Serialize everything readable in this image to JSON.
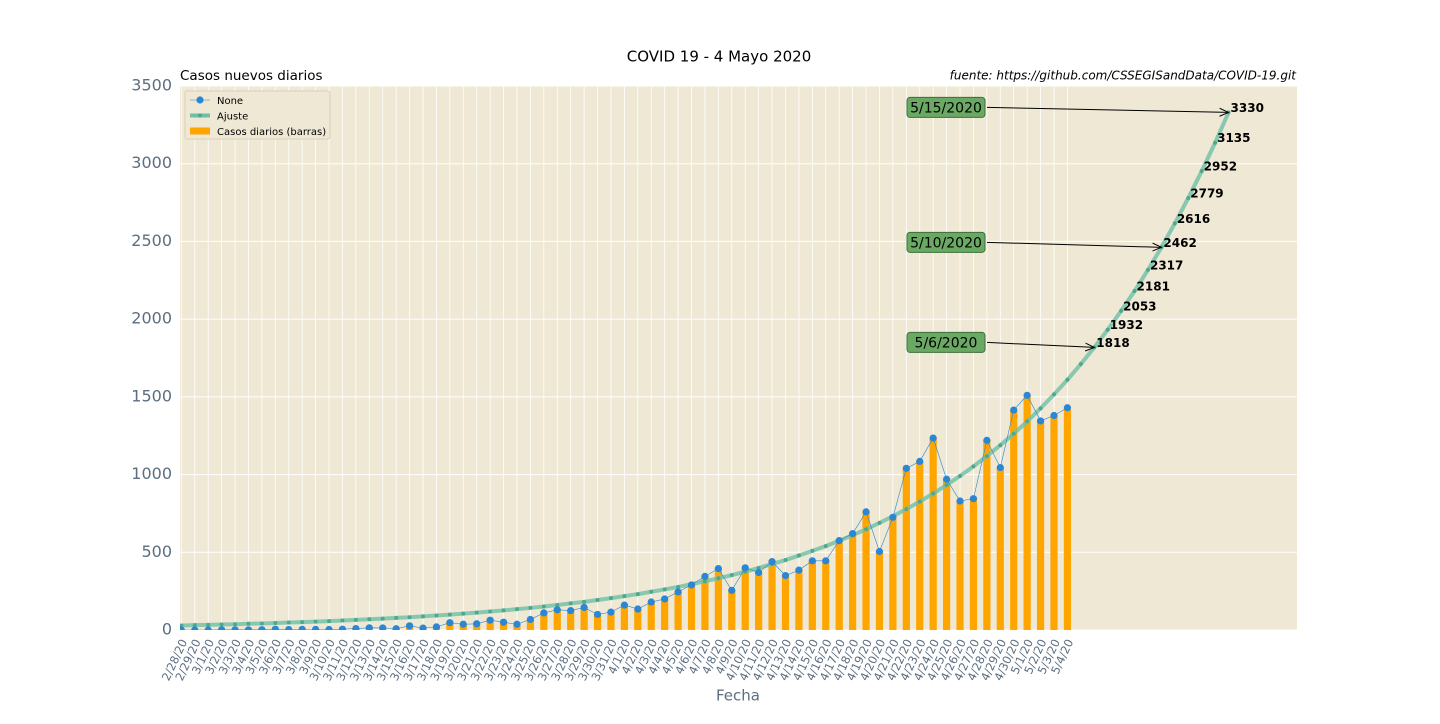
{
  "chart_data": {
    "type": "combo",
    "title": "COVID 19 - 4 Mayo 2020",
    "subtitle_left": "Casos nuevos diarios",
    "subtitle_right": "fuente: https://github.com/CSSEGISandData/COVID-19.git",
    "xlabel": "Fecha",
    "categories": [
      "2/28/20",
      "2/29/20",
      "3/1/20",
      "3/2/20",
      "3/3/20",
      "3/4/20",
      "3/5/20",
      "3/6/20",
      "3/7/20",
      "3/8/20",
      "3/9/20",
      "3/10/20",
      "3/11/20",
      "3/12/20",
      "3/13/20",
      "3/14/20",
      "3/15/20",
      "3/16/20",
      "3/17/20",
      "3/18/20",
      "3/19/20",
      "3/20/20",
      "3/21/20",
      "3/22/20",
      "3/23/20",
      "3/24/20",
      "3/25/20",
      "3/26/20",
      "3/27/20",
      "3/28/20",
      "3/29/20",
      "3/30/20",
      "3/31/20",
      "4/1/20",
      "4/2/20",
      "4/3/20",
      "4/4/20",
      "4/5/20",
      "4/6/20",
      "4/7/20",
      "4/8/20",
      "4/9/20",
      "4/10/20",
      "4/11/20",
      "4/12/20",
      "4/13/20",
      "4/14/20",
      "4/15/20",
      "4/16/20",
      "4/17/20",
      "4/18/20",
      "4/19/20",
      "4/20/20",
      "4/21/20",
      "4/22/20",
      "4/23/20",
      "4/24/20",
      "4/25/20",
      "4/26/20",
      "4/27/20",
      "4/28/20",
      "4/29/20",
      "4/30/20",
      "5/1/20",
      "5/2/20",
      "5/3/20",
      "5/4/20",
      null,
      null,
      null,
      null,
      null,
      null,
      null,
      null,
      null,
      null,
      null,
      null
    ],
    "series": [
      {
        "name": "None",
        "kind": "line",
        "color": "#2b86d3",
        "values": [
          0,
          0,
          0,
          1,
          1,
          1,
          2,
          5,
          3,
          4,
          4,
          3,
          5,
          9,
          14,
          13,
          8,
          27,
          12,
          20,
          47,
          37,
          40,
          63,
          50,
          37,
          68,
          110,
          130,
          125,
          145,
          100,
          115,
          160,
          135,
          180,
          200,
          245,
          290,
          345,
          395,
          255,
          400,
          370,
          440,
          350,
          385,
          445,
          445,
          575,
          620,
          760,
          505,
          725,
          1040,
          1085,
          1235,
          970,
          830,
          845,
          1220,
          1045,
          1415,
          1510,
          1345,
          1380,
          1430,
          null,
          null,
          null,
          null,
          null,
          null,
          null,
          null,
          null,
          null,
          null,
          null
        ]
      },
      {
        "name": "Ajuste",
        "kind": "fit",
        "color": "#6fbfa6",
        "values": [
          29,
          31,
          33,
          35,
          37,
          40,
          42,
          45,
          48,
          51,
          54,
          57,
          61,
          65,
          69,
          73,
          78,
          82,
          88,
          93,
          99,
          105,
          112,
          119,
          126,
          134,
          142,
          151,
          161,
          171,
          181,
          193,
          205,
          218,
          231,
          246,
          261,
          277,
          295,
          313,
          333,
          353,
          375,
          399,
          424,
          450,
          479,
          509,
          540,
          574,
          610,
          648,
          689,
          732,
          778,
          826,
          878,
          933,
          991,
          1053,
          1119,
          1189,
          1263,
          1342,
          1426,
          1516,
          1610,
          1711,
          1818,
          1932,
          2053,
          2181,
          2317,
          2462,
          2616,
          2779,
          2952,
          3135,
          3330
        ],
        "value_labels": [
          null,
          null,
          null,
          null,
          null,
          null,
          null,
          null,
          null,
          null,
          null,
          null,
          null,
          null,
          null,
          null,
          null,
          null,
          null,
          null,
          null,
          null,
          null,
          null,
          null,
          null,
          null,
          null,
          null,
          null,
          null,
          null,
          null,
          null,
          null,
          null,
          null,
          null,
          null,
          null,
          null,
          null,
          null,
          null,
          null,
          null,
          null,
          null,
          null,
          null,
          null,
          null,
          null,
          null,
          null,
          null,
          null,
          null,
          null,
          null,
          null,
          null,
          null,
          null,
          null,
          null,
          null,
          null,
          "1818",
          "1932",
          "2053",
          "2181",
          "2317",
          "2462",
          "2616",
          "2779",
          "2952",
          "3135",
          "3330"
        ]
      },
      {
        "name": "Casos diarios (barras)",
        "kind": "bar",
        "color": "#ffa500",
        "values": [
          0,
          0,
          0,
          1,
          1,
          1,
          2,
          5,
          3,
          4,
          4,
          3,
          5,
          9,
          14,
          13,
          8,
          27,
          12,
          20,
          47,
          37,
          40,
          63,
          50,
          37,
          68,
          110,
          130,
          125,
          145,
          100,
          115,
          160,
          135,
          180,
          200,
          245,
          290,
          345,
          395,
          255,
          400,
          370,
          440,
          350,
          385,
          445,
          445,
          575,
          620,
          760,
          505,
          725,
          1040,
          1085,
          1235,
          970,
          830,
          845,
          1220,
          1045,
          1415,
          1510,
          1345,
          1380,
          1430,
          null,
          null,
          null,
          null,
          null,
          null,
          null,
          null,
          null,
          null,
          null,
          null
        ]
      }
    ],
    "annotations": [
      {
        "text": "5/6/2020",
        "point": 68
      },
      {
        "text": "5/10/2020",
        "point": 73
      },
      {
        "text": "5/15/2020",
        "point": 78
      }
    ],
    "xlim": [
      -0.1,
      83.1
    ],
    "ylim": [
      0,
      3500
    ],
    "yticks": [
      0,
      500,
      1000,
      1500,
      2000,
      2500,
      3000,
      3500
    ],
    "grid": true,
    "legend": "upper left",
    "background": "#efe8d5"
  }
}
